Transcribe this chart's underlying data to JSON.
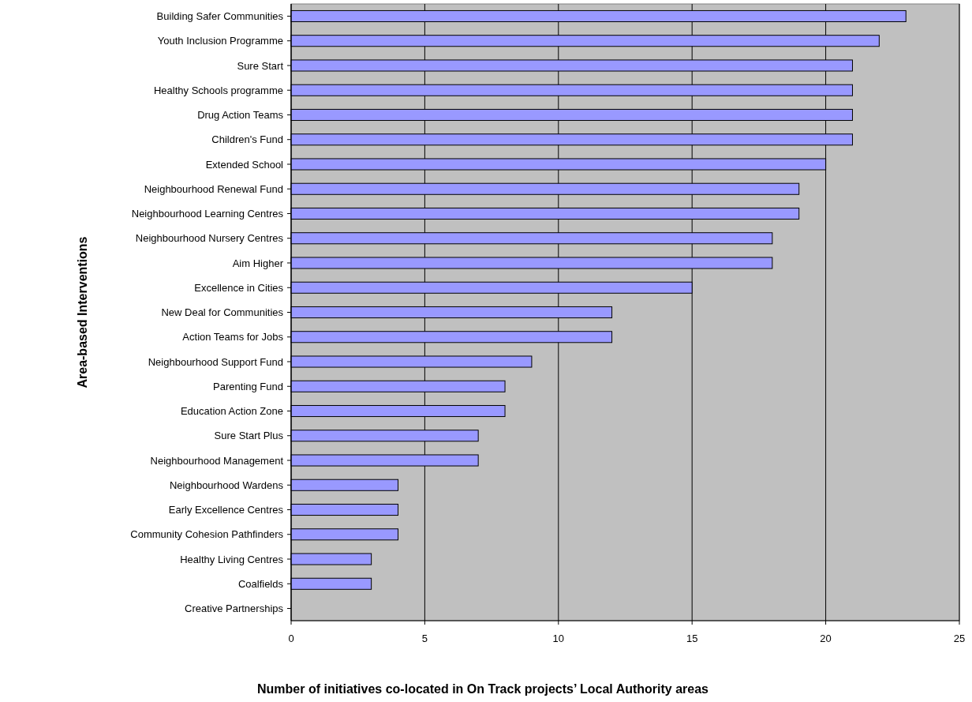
{
  "chart_data": {
    "type": "bar",
    "orientation": "horizontal",
    "xlabel": "Number of initiatives co-located in On Track projects’ Local Authority areas",
    "ylabel": "Area-based Interventions",
    "categories": [
      "Building Safer Communities",
      "Youth Inclusion Programme",
      "Sure Start",
      "Healthy Schools programme",
      "Drug Action Teams",
      "Children's Fund",
      "Extended School",
      "Neighbourhood Renewal Fund",
      "Neighbourhood Learning Centres",
      "Neighbourhood Nursery Centres",
      "Aim Higher",
      "Excellence in Cities",
      "New Deal for Communities",
      "Action Teams for Jobs",
      "Neighbourhood Support Fund",
      "Parenting Fund",
      "Education Action Zone",
      "Sure Start Plus",
      "Neighbourhood Management",
      "Neighbourhood Wardens",
      "Early Excellence Centres",
      "Community Cohesion Pathfinders",
      "Healthy Living Centres",
      "Coalfields",
      "Creative Partnerships"
    ],
    "values": [
      23,
      22,
      21,
      21,
      21,
      21,
      20,
      19,
      19,
      18,
      18,
      15,
      12,
      12,
      9,
      8,
      8,
      7,
      7,
      4,
      4,
      4,
      3,
      3,
      0
    ],
    "color": "#9999ff",
    "xlim": [
      0,
      25
    ],
    "xticks": [
      0,
      5,
      10,
      15,
      20,
      25
    ],
    "grid": "x"
  }
}
